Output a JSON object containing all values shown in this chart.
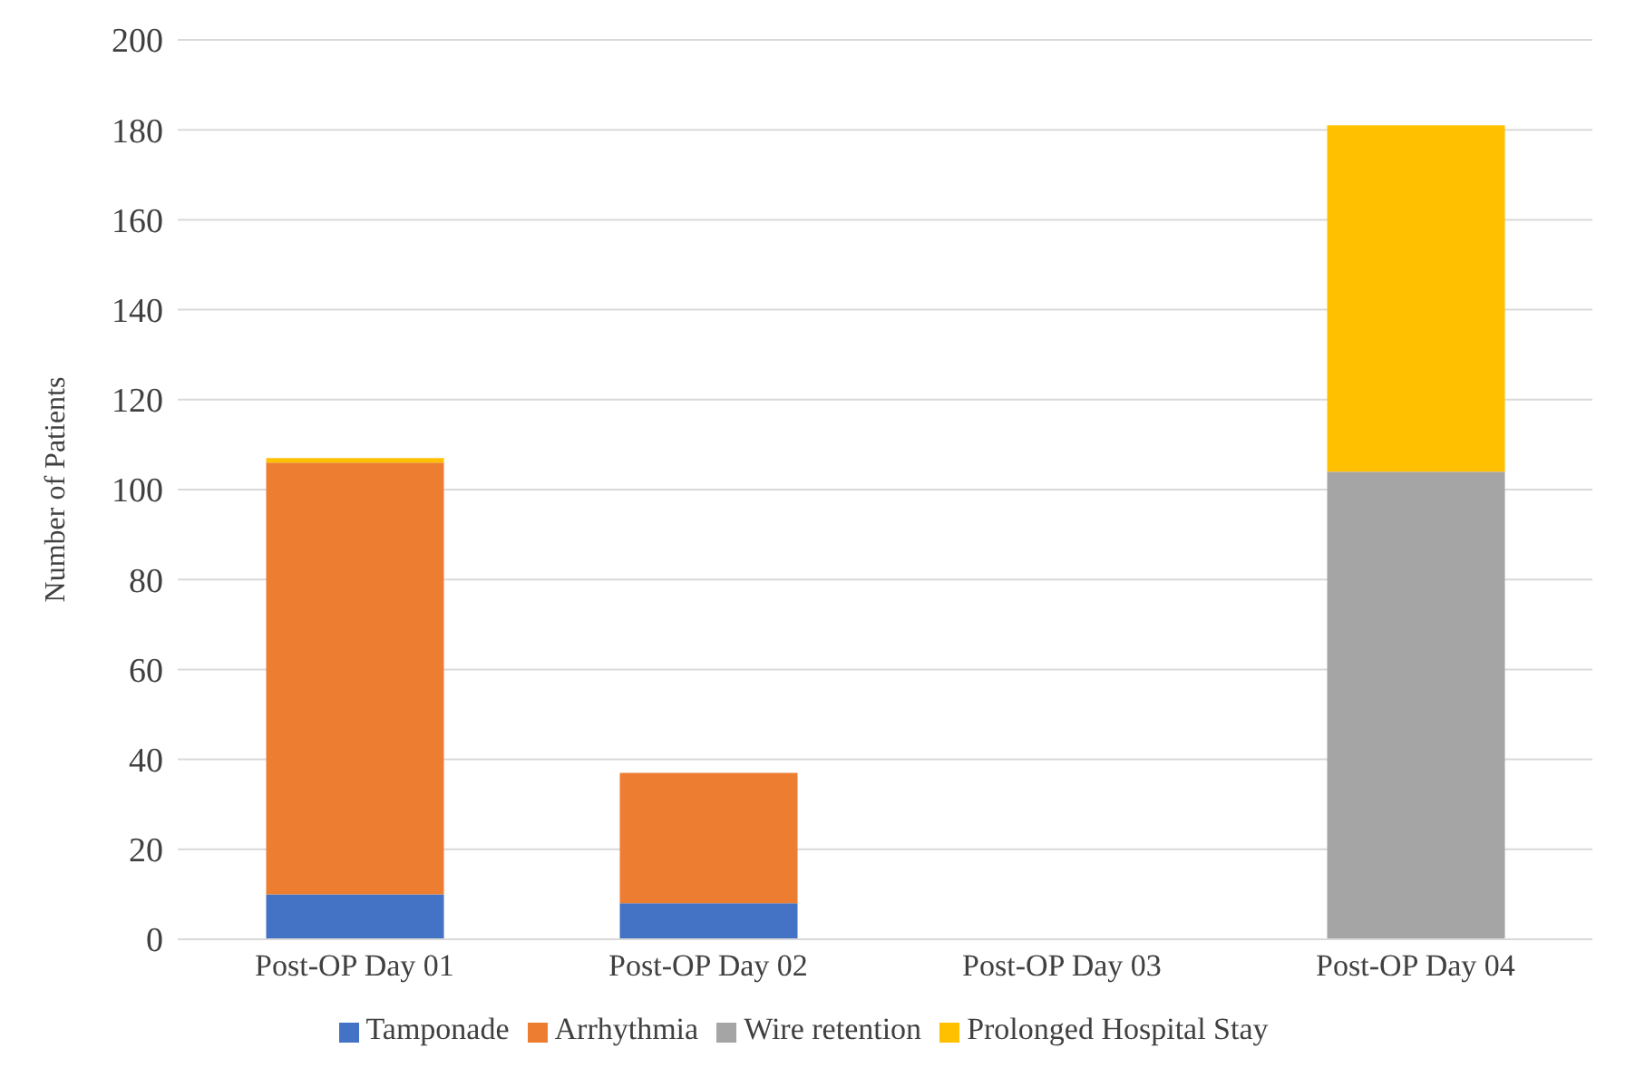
{
  "chart_data": {
    "type": "bar",
    "stacked": true,
    "ylabel": "Number of Patients",
    "categories": [
      "Post-OP Day 01",
      "Post-OP Day 02",
      "Post-OP Day 03",
      "Post-OP Day 04"
    ],
    "series": [
      {
        "name": "Tamponade",
        "color": "#4472c4",
        "values": [
          10,
          8,
          0,
          0
        ]
      },
      {
        "name": "Arrhythmia",
        "color": "#ed7d31",
        "values": [
          96,
          29,
          0,
          0
        ]
      },
      {
        "name": "Wire retention",
        "color": "#a5a5a5",
        "values": [
          0,
          0,
          0,
          104
        ]
      },
      {
        "name": "Prolonged Hospital Stay",
        "color": "#ffc000",
        "values": [
          1,
          0,
          0,
          77
        ]
      }
    ],
    "ylim": [
      0,
      200
    ],
    "yticks": [
      0,
      20,
      40,
      60,
      80,
      100,
      120,
      140,
      160,
      180,
      200
    ],
    "grid": "y",
    "legend": "bottom"
  }
}
